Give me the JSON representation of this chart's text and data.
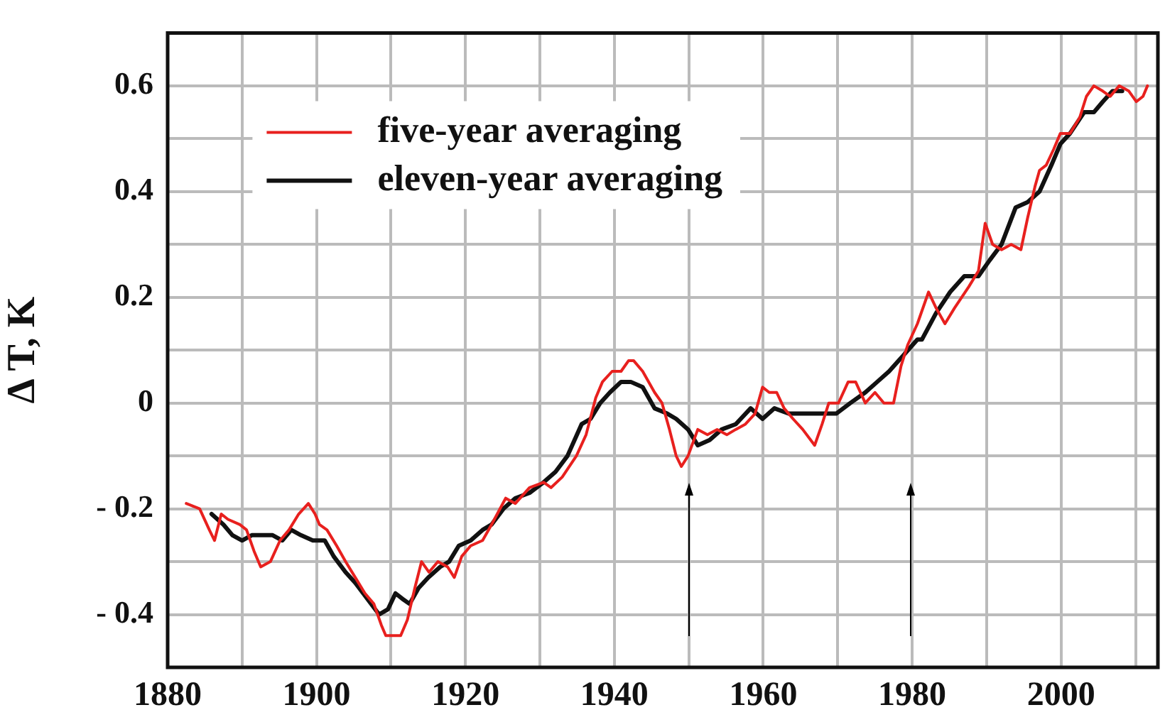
{
  "chart_data": {
    "type": "line",
    "ylabel": "Δ T, K",
    "xlim": [
      1880,
      2013
    ],
    "ylim": [
      -0.5,
      0.7
    ],
    "xticks": [
      1880,
      {
        "value": 1890,
        "label": null
      },
      1900,
      {
        "value": 1910,
        "label": null
      },
      1920,
      {
        "value": 1930,
        "label": null
      },
      1940,
      {
        "value": 1950,
        "label": null
      },
      1960,
      {
        "value": 1970,
        "label": null
      },
      1980,
      {
        "value": 1990,
        "label": null
      },
      2000,
      {
        "value": 2010,
        "label": null
      }
    ],
    "yticks": [
      {
        "value": -0.4,
        "label": "- 0.4"
      },
      {
        "value": -0.3,
        "label": null
      },
      {
        "value": -0.2,
        "label": "- 0.2"
      },
      {
        "value": -0.1,
        "label": null
      },
      0,
      {
        "value": 0.1,
        "label": null
      },
      0.2,
      {
        "value": 0.3,
        "label": null
      },
      0.4,
      {
        "value": 0.5,
        "label": null
      },
      0.6
    ],
    "grid": true,
    "legend": "top left",
    "marker": "none",
    "line_style": "solid",
    "series": [
      {
        "name": "five-year averaging",
        "color": "#e8201e",
        "x": [
          1882.5,
          1884.3,
          1885.6,
          1886.3,
          1887.2,
          1888.1,
          1889.7,
          1890.6,
          1891.6,
          1892.5,
          1893.8,
          1895.1,
          1896.3,
          1897.6,
          1898.9,
          1899.8,
          1900.4,
          1901.4,
          1902.7,
          1903.9,
          1905.2,
          1906.5,
          1907.7,
          1908.7,
          1909.3,
          1910.3,
          1911.3,
          1912.2,
          1913.2,
          1914.1,
          1915.1,
          1916.3,
          1917.6,
          1918.5,
          1919.5,
          1920.7,
          1922.3,
          1923.5,
          1925.4,
          1926.7,
          1928.6,
          1930.5,
          1931.5,
          1933.0,
          1934.9,
          1936.2,
          1937.5,
          1938.4,
          1939.7,
          1940.9,
          1941.9,
          1942.6,
          1943.8,
          1945.4,
          1946.4,
          1947.4,
          1948.3,
          1949.0,
          1949.9,
          1951.2,
          1952.5,
          1953.8,
          1955.1,
          1956.3,
          1957.6,
          1958.9,
          1959.9,
          1960.8,
          1961.8,
          1962.8,
          1964.0,
          1965.3,
          1966.9,
          1967.9,
          1968.8,
          1970.1,
          1971.4,
          1972.4,
          1973.7,
          1975.0,
          1976.2,
          1977.5,
          1978.5,
          1979.4,
          1980.7,
          1982.2,
          1983.2,
          1984.4,
          1985.7,
          1987.6,
          1988.9,
          1989.8,
          1990.8,
          1992.0,
          1993.3,
          1994.6,
          1995.5,
          1996.5,
          1997.1,
          1998.0,
          1999.0,
          1999.9,
          2001.2,
          2002.5,
          2003.4,
          2004.4,
          2005.6,
          2006.6,
          2007.8,
          2009.1,
          2010.1,
          2011.0,
          2011.6
        ],
        "values": [
          -0.19,
          -0.2,
          -0.24,
          -0.26,
          -0.21,
          -0.22,
          -0.23,
          -0.24,
          -0.28,
          -0.31,
          -0.3,
          -0.26,
          -0.24,
          -0.21,
          -0.19,
          -0.21,
          -0.23,
          -0.24,
          -0.27,
          -0.3,
          -0.33,
          -0.36,
          -0.38,
          -0.42,
          -0.44,
          -0.44,
          -0.44,
          -0.41,
          -0.35,
          -0.3,
          -0.32,
          -0.3,
          -0.31,
          -0.33,
          -0.29,
          -0.27,
          -0.26,
          -0.23,
          -0.18,
          -0.19,
          -0.16,
          -0.15,
          -0.16,
          -0.14,
          -0.1,
          -0.06,
          0.01,
          0.04,
          0.06,
          0.06,
          0.08,
          0.08,
          0.06,
          0.02,
          0.0,
          -0.05,
          -0.1,
          -0.12,
          -0.1,
          -0.05,
          -0.06,
          -0.05,
          -0.06,
          -0.05,
          -0.04,
          -0.02,
          0.03,
          0.02,
          0.02,
          -0.01,
          -0.03,
          -0.05,
          -0.08,
          -0.04,
          0.0,
          0.0,
          0.04,
          0.04,
          0.0,
          0.02,
          0.0,
          0.0,
          0.07,
          0.11,
          0.15,
          0.21,
          0.18,
          0.15,
          0.18,
          0.22,
          0.25,
          0.34,
          0.3,
          0.29,
          0.3,
          0.29,
          0.35,
          0.41,
          0.44,
          0.45,
          0.48,
          0.51,
          0.51,
          0.54,
          0.58,
          0.6,
          0.59,
          0.58,
          0.6,
          0.59,
          0.57,
          0.58,
          0.6
        ]
      },
      {
        "name": "eleven-year averaging",
        "color": "#111111",
        "x": [
          1885.9,
          1887.5,
          1888.7,
          1890.0,
          1891.3,
          1892.5,
          1894.1,
          1895.4,
          1896.6,
          1897.9,
          1899.5,
          1901.1,
          1902.3,
          1903.9,
          1905.2,
          1906.8,
          1908.4,
          1909.6,
          1910.6,
          1911.5,
          1912.5,
          1913.7,
          1915.0,
          1916.6,
          1917.8,
          1919.1,
          1920.7,
          1922.3,
          1923.5,
          1925.1,
          1926.7,
          1928.6,
          1930.5,
          1932.1,
          1933.7,
          1935.6,
          1936.8,
          1938.1,
          1939.4,
          1940.9,
          1942.2,
          1943.8,
          1945.4,
          1947.1,
          1948.3,
          1949.9,
          1951.2,
          1952.8,
          1954.4,
          1956.3,
          1958.3,
          1959.9,
          1961.5,
          1963.4,
          1965.6,
          1967.9,
          1969.8,
          1971.7,
          1973.7,
          1975.3,
          1976.9,
          1978.8,
          1980.7,
          1981.3,
          1983.2,
          1985.1,
          1987.0,
          1988.9,
          1990.4,
          1992.0,
          1993.9,
          1995.5,
          1997.1,
          1998.7,
          1999.9,
          2001.2,
          2003.1,
          2004.4,
          2005.6,
          2006.9,
          2008.2
        ],
        "values": [
          -0.21,
          -0.23,
          -0.25,
          -0.26,
          -0.25,
          -0.25,
          -0.25,
          -0.26,
          -0.24,
          -0.25,
          -0.26,
          -0.26,
          -0.29,
          -0.32,
          -0.34,
          -0.37,
          -0.4,
          -0.39,
          -0.36,
          -0.37,
          -0.38,
          -0.35,
          -0.33,
          -0.31,
          -0.3,
          -0.27,
          -0.26,
          -0.24,
          -0.23,
          -0.2,
          -0.18,
          -0.17,
          -0.15,
          -0.13,
          -0.1,
          -0.04,
          -0.03,
          0.0,
          0.02,
          0.04,
          0.04,
          0.03,
          -0.01,
          -0.02,
          -0.03,
          -0.05,
          -0.08,
          -0.07,
          -0.05,
          -0.04,
          -0.01,
          -0.03,
          -0.01,
          -0.02,
          -0.02,
          -0.02,
          -0.02,
          0.0,
          0.02,
          0.04,
          0.06,
          0.09,
          0.12,
          0.12,
          0.17,
          0.21,
          0.24,
          0.24,
          0.27,
          0.3,
          0.37,
          0.38,
          0.4,
          0.45,
          0.49,
          0.51,
          0.55,
          0.55,
          0.57,
          0.59,
          0.59
        ]
      }
    ]
  }
}
